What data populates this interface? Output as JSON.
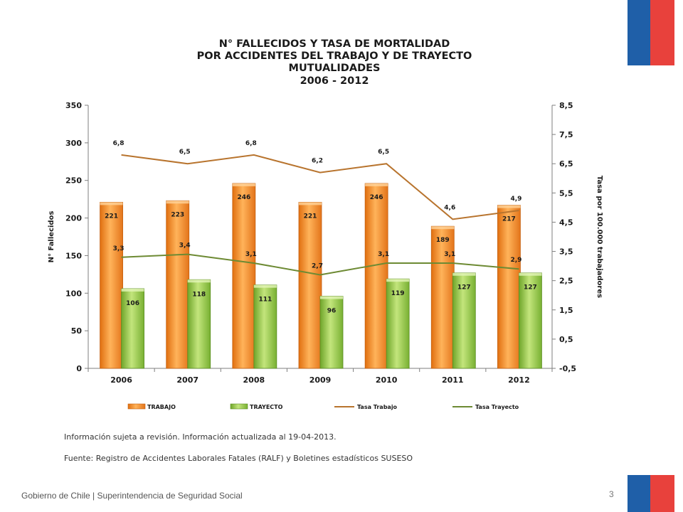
{
  "title_lines": [
    "N° FALLECIDOS Y TASA DE MORTALIDAD",
    "POR ACCIDENTES DEL TRABAJO Y DE TRAYECTO",
    "MUTUALIDADES",
    "2006 - 2012"
  ],
  "notes": {
    "revision": "Información sujeta a revisión. Información actualizada al 19-04-2013.",
    "source": "Fuente: Registro de Accidentes Laborales Fatales (RALF) y Boletines estadísticos SUSESO"
  },
  "footer": "Gobierno de Chile | Superintendencia de Seguridad Social",
  "page_number": "3",
  "colors": {
    "trabajo_bar": "#f28a1e",
    "trayecto_bar": "#8fc63d",
    "tasa_trabajo_line": "#b8742e",
    "tasa_trayecto_line": "#6d8a33",
    "flag_blue": "#1f5fa8",
    "flag_red": "#e8413c"
  },
  "chart_data": {
    "type": "bar",
    "categories": [
      "2006",
      "2007",
      "2008",
      "2009",
      "2010",
      "2011",
      "2012"
    ],
    "ylabel": "N° Fallecidos",
    "y2label": "Tasa por 100.000 trabajadores",
    "ylim": [
      0,
      350
    ],
    "y2lim": [
      -0.5,
      8.5
    ],
    "yticks": [
      "0",
      "50",
      "100",
      "150",
      "200",
      "250",
      "300",
      "350"
    ],
    "y2ticks": [
      "-0,5",
      "0,5",
      "1,5",
      "2,5",
      "3,5",
      "4,5",
      "5,5",
      "6,5",
      "7,5",
      "8,5"
    ],
    "y2tick_values": [
      -0.5,
      0.5,
      1.5,
      2.5,
      3.5,
      4.5,
      5.5,
      6.5,
      7.5,
      8.5
    ],
    "legend_position": "bottom",
    "grid": false,
    "series": [
      {
        "name": "TRABAJO",
        "kind": "bar",
        "values": [
          221,
          223,
          246,
          221,
          246,
          189,
          217
        ],
        "labels": [
          "221",
          "223",
          "246",
          "221",
          "246",
          "189",
          "217"
        ]
      },
      {
        "name": "TRAYECTO",
        "kind": "bar",
        "values": [
          106,
          118,
          111,
          96,
          119,
          127,
          127
        ],
        "labels": [
          "106",
          "118",
          "111",
          "96",
          "119",
          "127",
          "127"
        ]
      },
      {
        "name": "Tasa Trabajo",
        "kind": "line",
        "axis": "right",
        "values": [
          6.8,
          6.5,
          6.8,
          6.2,
          6.5,
          4.6,
          4.9
        ],
        "labels": [
          "6,8",
          "6,5",
          "6,8",
          "6,2",
          "6,5",
          "4,6",
          "4,9"
        ]
      },
      {
        "name": "Tasa Trayecto",
        "kind": "line",
        "axis": "right",
        "values": [
          3.3,
          3.4,
          3.1,
          2.7,
          3.1,
          3.1,
          2.9
        ],
        "labels": [
          "3,3",
          "3,4",
          "3,1",
          "2,7",
          "3,1",
          "3,1",
          "2,9"
        ]
      }
    ]
  }
}
